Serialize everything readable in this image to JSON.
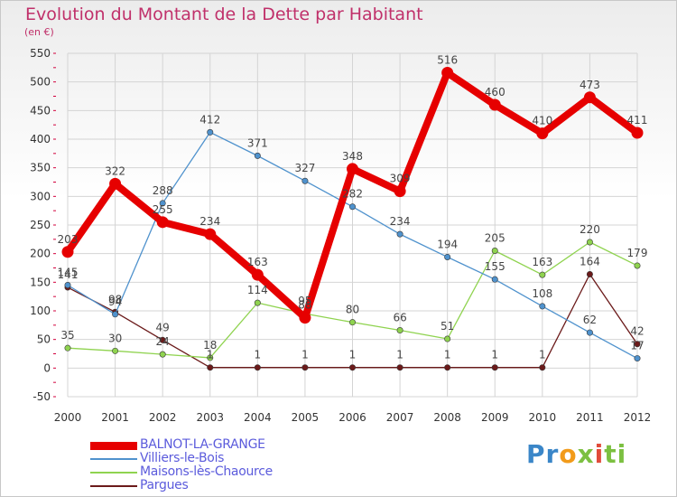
{
  "colors": {
    "balnot": "#e60000",
    "villiers": "#4f92cd",
    "maisons": "#8fd34f",
    "pargues": "#6b1a1a",
    "title": "#c0306a",
    "legend_text": "#5b5bdc"
  },
  "brand": {
    "p1": "Pr",
    "p2": "o",
    "p3": "x",
    "p4": "i",
    "p5": "ti"
  },
  "chart_data": {
    "type": "line",
    "title": "Evolution du Montant de la Dette par Habitant",
    "subtitle": "(en €)",
    "xlabel": "",
    "ylabel": "",
    "categories": [
      "2000",
      "2001",
      "2002",
      "2003",
      "2004",
      "2005",
      "2006",
      "2007",
      "2008",
      "2009",
      "2010",
      "2011",
      "2012"
    ],
    "ylim": [
      -50,
      550
    ],
    "yticks": [
      -50,
      0,
      50,
      100,
      150,
      200,
      250,
      300,
      350,
      400,
      450,
      500,
      550
    ],
    "grid": true,
    "series": [
      {
        "name": "BALNOT-LA-GRANGE",
        "color": "#e60000",
        "values": [
          203,
          322,
          255,
          234,
          163,
          88,
          348,
          309,
          516,
          460,
          410,
          473,
          411
        ]
      },
      {
        "name": "Villiers-le-Bois",
        "color": "#4f92cd",
        "values": [
          145,
          94,
          288,
          412,
          371,
          327,
          282,
          234,
          194,
          155,
          108,
          62,
          17
        ]
      },
      {
        "name": "Maisons-lès-Chaource",
        "color": "#8fd34f",
        "values": [
          35,
          30,
          24,
          18,
          114,
          95,
          80,
          66,
          51,
          205,
          163,
          220,
          179
        ]
      },
      {
        "name": "Pargues",
        "color": "#6b1a1a",
        "values": [
          141,
          98,
          49,
          1,
          1,
          1,
          1,
          1,
          1,
          1,
          1,
          164,
          42
        ]
      }
    ]
  }
}
